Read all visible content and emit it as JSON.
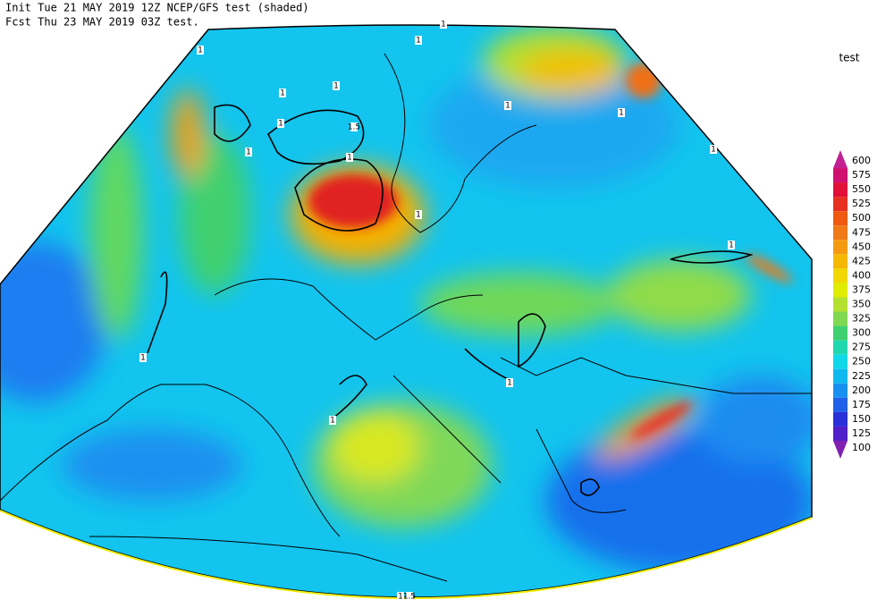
{
  "header": {
    "lines": [
      "Init  Tue 21 MAY 2019 12Z  NCEP/GFS test (shaded)",
      "Fcst Thu 23 MAY 2019 03Z  test."
    ]
  },
  "legend": {
    "title": "test",
    "levels": [
      {
        "value": 600,
        "color": "#c02090"
      },
      {
        "value": 575,
        "color": "#d01070"
      },
      {
        "value": 550,
        "color": "#e01038"
      },
      {
        "value": 525,
        "color": "#e83020"
      },
      {
        "value": 500,
        "color": "#f05a10"
      },
      {
        "value": 475,
        "color": "#f07a18"
      },
      {
        "value": 450,
        "color": "#f59a10"
      },
      {
        "value": 425,
        "color": "#f5b800"
      },
      {
        "value": 400,
        "color": "#f0d800"
      },
      {
        "value": 375,
        "color": "#e0ec00"
      },
      {
        "value": 350,
        "color": "#b4e030"
      },
      {
        "value": 325,
        "color": "#80d850"
      },
      {
        "value": 300,
        "color": "#40d070"
      },
      {
        "value": 275,
        "color": "#20d8b0"
      },
      {
        "value": 250,
        "color": "#10d8e8"
      },
      {
        "value": 225,
        "color": "#10b8f0"
      },
      {
        "value": 200,
        "color": "#1890f0"
      },
      {
        "value": 175,
        "color": "#2060e8"
      },
      {
        "value": 150,
        "color": "#2830d8"
      },
      {
        "value": 125,
        "color": "#5020c8"
      },
      {
        "value": 100,
        "color": "#8020b0"
      }
    ]
  },
  "contour_labels": [
    "1",
    "1",
    "1",
    "1",
    "1",
    "1.5",
    "1",
    "1",
    "1",
    "1",
    "1",
    "1",
    "1",
    "1",
    "1",
    "1",
    "1",
    "1",
    "1.5"
  ]
}
